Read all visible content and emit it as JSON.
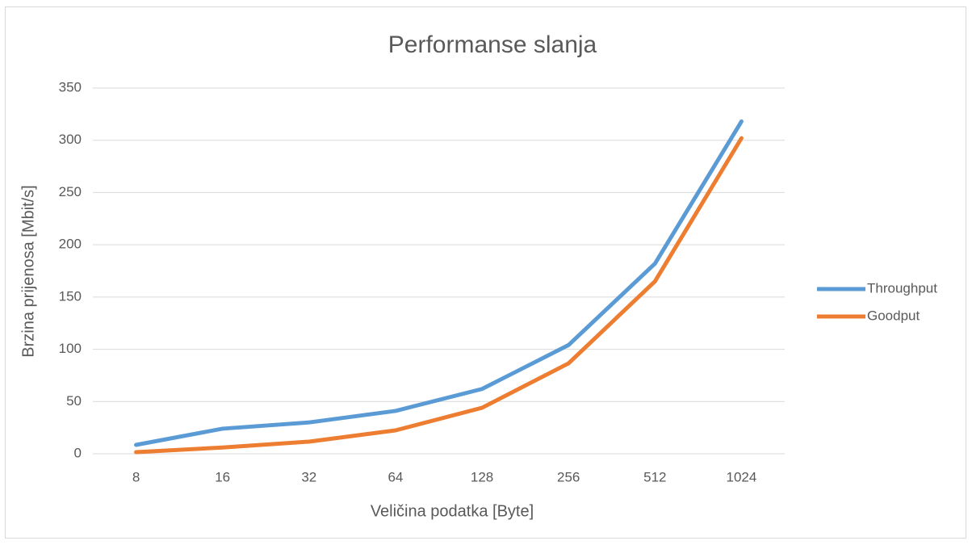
{
  "chart_data": {
    "type": "line",
    "title": "Performanse slanja",
    "x_label": "Veličina podatka [Byte]",
    "y_label": "Brzina prijenosa [Mbit/s]",
    "categories": [
      "8",
      "16",
      "32",
      "64",
      "128",
      "256",
      "512",
      "1024"
    ],
    "series": [
      {
        "name": "Throughput",
        "color": "#5b9bd5",
        "values": [
          8.5,
          24,
          30,
          41,
          62,
          104,
          182,
          318
        ]
      },
      {
        "name": "Goodput",
        "color": "#ed7d31",
        "values": [
          1.5,
          6,
          11.6,
          22.4,
          44,
          86.5,
          165,
          302
        ]
      }
    ],
    "ylim": [
      0,
      350
    ],
    "yticks": [
      0,
      50,
      100,
      150,
      200,
      250,
      300,
      350
    ],
    "grid": true,
    "legend": "right"
  }
}
